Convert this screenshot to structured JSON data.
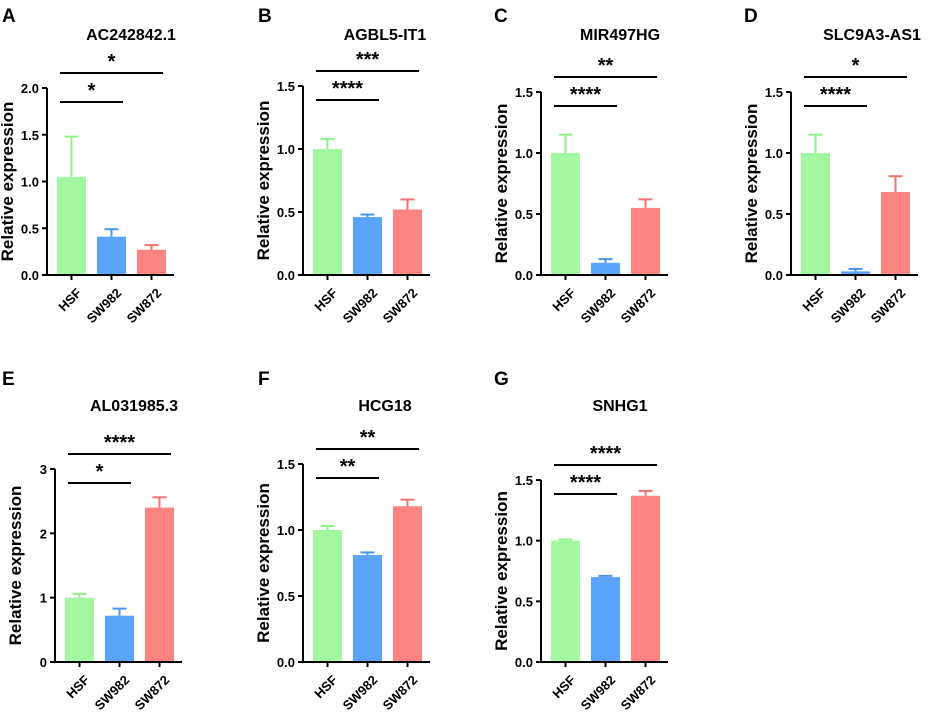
{
  "chart_data": [
    {
      "type": "bar",
      "panel_label": "A",
      "title": "AC242842.1",
      "ylabel": "Relative expression",
      "categories": [
        "HSF",
        "SW982",
        "SW872"
      ],
      "values": [
        1.05,
        0.41,
        0.27
      ],
      "errors": [
        0.43,
        0.08,
        0.05
      ],
      "ylim": [
        0,
        2.0
      ],
      "yticks": [
        0,
        0.5,
        1.0,
        1.5,
        2.0
      ],
      "ytick_labels": [
        "0.0",
        "0.5",
        "1.0",
        "1.5",
        "2.0"
      ],
      "significance": [
        {
          "from": 0,
          "to": 1,
          "label": "*"
        },
        {
          "from": 0,
          "to": 2,
          "label": "*"
        }
      ]
    },
    {
      "type": "bar",
      "panel_label": "B",
      "title": "AGBL5-IT1",
      "ylabel": "Relative expression",
      "categories": [
        "HSF",
        "SW982",
        "SW872"
      ],
      "values": [
        1.0,
        0.46,
        0.52
      ],
      "errors": [
        0.08,
        0.02,
        0.08
      ],
      "ylim": [
        0,
        1.5
      ],
      "yticks": [
        0,
        0.5,
        1.0,
        1.5
      ],
      "ytick_labels": [
        "0.0",
        "0.5",
        "1.0",
        "1.5"
      ],
      "significance": [
        {
          "from": 0,
          "to": 1,
          "label": "****"
        },
        {
          "from": 0,
          "to": 2,
          "label": "***"
        }
      ]
    },
    {
      "type": "bar",
      "panel_label": "C",
      "title": "MIR497HG",
      "ylabel": "Relative expression",
      "categories": [
        "HSF",
        "SW982",
        "SW872"
      ],
      "values": [
        1.0,
        0.1,
        0.55
      ],
      "errors": [
        0.15,
        0.03,
        0.07
      ],
      "ylim": [
        0,
        1.5
      ],
      "yticks": [
        0,
        0.5,
        1.0,
        1.5
      ],
      "ytick_labels": [
        "0.0",
        "0.5",
        "1.0",
        "1.5"
      ],
      "significance": [
        {
          "from": 0,
          "to": 1,
          "label": "****"
        },
        {
          "from": 0,
          "to": 2,
          "label": "**"
        }
      ]
    },
    {
      "type": "bar",
      "panel_label": "D",
      "title": "SLC9A3-AS1",
      "ylabel": "Relative expression",
      "categories": [
        "HSF",
        "SW982",
        "SW872"
      ],
      "values": [
        1.0,
        0.03,
        0.68
      ],
      "errors": [
        0.15,
        0.02,
        0.13
      ],
      "ylim": [
        0,
        1.5
      ],
      "yticks": [
        0,
        0.5,
        1.0,
        1.5
      ],
      "ytick_labels": [
        "0.0",
        "0.5",
        "1.0",
        "1.5"
      ],
      "significance": [
        {
          "from": 0,
          "to": 1,
          "label": "****"
        },
        {
          "from": 0,
          "to": 2,
          "label": "*"
        }
      ]
    },
    {
      "type": "bar",
      "panel_label": "E",
      "title": "AL031985.3",
      "ylabel": "Relative expression",
      "categories": [
        "HSF",
        "SW982",
        "SW872"
      ],
      "values": [
        1.0,
        0.72,
        2.4
      ],
      "errors": [
        0.06,
        0.11,
        0.16
      ],
      "ylim": [
        0,
        3
      ],
      "yticks": [
        0,
        1,
        2,
        3
      ],
      "ytick_labels": [
        "0",
        "1",
        "2",
        "3"
      ],
      "significance": [
        {
          "from": 0,
          "to": 1,
          "label": "*"
        },
        {
          "from": 0,
          "to": 2,
          "label": "****"
        }
      ]
    },
    {
      "type": "bar",
      "panel_label": "F",
      "title": "HCG18",
      "ylabel": "Relative expression",
      "categories": [
        "HSF",
        "SW982",
        "SW872"
      ],
      "values": [
        1.0,
        0.81,
        1.18
      ],
      "errors": [
        0.03,
        0.02,
        0.05
      ],
      "ylim": [
        0,
        1.5
      ],
      "yticks": [
        0,
        0.5,
        1.0,
        1.5
      ],
      "ytick_labels": [
        "0.0",
        "0.5",
        "1.0",
        "1.5"
      ],
      "significance": [
        {
          "from": 0,
          "to": 1,
          "label": "**"
        },
        {
          "from": 0,
          "to": 2,
          "label": "**"
        }
      ]
    },
    {
      "type": "bar",
      "panel_label": "G",
      "title": "SNHG1",
      "ylabel": "Relative expression",
      "categories": [
        "HSF",
        "SW982",
        "SW872"
      ],
      "values": [
        1.0,
        0.7,
        1.37
      ],
      "errors": [
        0.01,
        0.01,
        0.04
      ],
      "ylim": [
        0,
        1.5
      ],
      "yticks": [
        0,
        0.5,
        1.0,
        1.5
      ],
      "ytick_labels": [
        "0.0",
        "0.5",
        "1.0",
        "1.5"
      ],
      "significance": [
        {
          "from": 0,
          "to": 1,
          "label": "****"
        },
        {
          "from": 0,
          "to": 2,
          "label": "****"
        }
      ]
    }
  ],
  "colors": {
    "bars": [
      "#a3f7a0",
      "#5aa4fb",
      "#fb8380"
    ],
    "error_bars": [
      "#8ef28a",
      "#4a94f0",
      "#f4716e"
    ],
    "axis": "#000000"
  }
}
